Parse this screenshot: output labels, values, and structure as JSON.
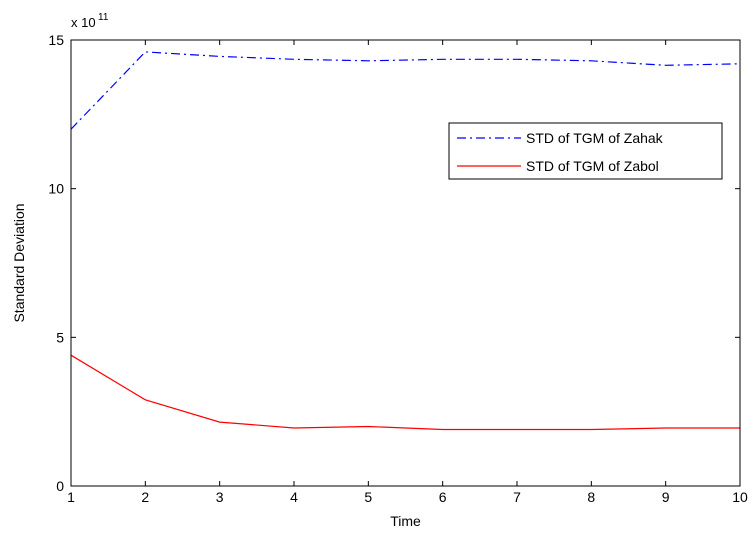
{
  "chart_data": {
    "type": "line",
    "title": "",
    "xlabel": "Time",
    "ylabel": "Standard Deviation",
    "y_exponent_base": "x 10",
    "y_exponent_power": "11",
    "xlim": [
      1,
      10
    ],
    "ylim": [
      0,
      15
    ],
    "x_ticks": [
      1,
      2,
      3,
      4,
      5,
      6,
      7,
      8,
      9,
      10
    ],
    "y_ticks": [
      0,
      5,
      10,
      15
    ],
    "grid": false,
    "legend_position": "upper-right",
    "series": [
      {
        "name": "STD of TGM of Zahak",
        "color": "#0000ff",
        "line_style": "dash-dot",
        "x": [
          1,
          2,
          3,
          4,
          5,
          6,
          7,
          8,
          9,
          10
        ],
        "y": [
          12.0,
          14.6,
          14.45,
          14.35,
          14.3,
          14.35,
          14.35,
          14.3,
          14.15,
          14.2
        ]
      },
      {
        "name": "STD of TGM of Zabol",
        "color": "#ff0000",
        "line_style": "solid",
        "x": [
          1,
          2,
          3,
          4,
          5,
          6,
          7,
          8,
          9,
          10
        ],
        "y": [
          4.4,
          2.9,
          2.15,
          1.95,
          2.0,
          1.9,
          1.9,
          1.9,
          1.95,
          1.95
        ]
      }
    ]
  }
}
